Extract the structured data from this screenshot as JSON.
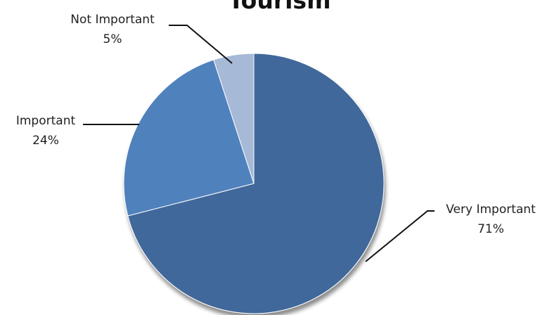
{
  "chart_data": {
    "type": "pie",
    "title": "Tourism",
    "categories": [
      "Very Important",
      "Important",
      "Not Important"
    ],
    "values": [
      71,
      24,
      5
    ],
    "value_labels": [
      "71%",
      "24%",
      "5%"
    ],
    "colors": {
      "Very Important": "#3f679a",
      "Important": "#4f81bd",
      "Not Important": "#a6b9d6"
    },
    "legend": "none",
    "data_labels": "outside-with-leader-lines"
  }
}
